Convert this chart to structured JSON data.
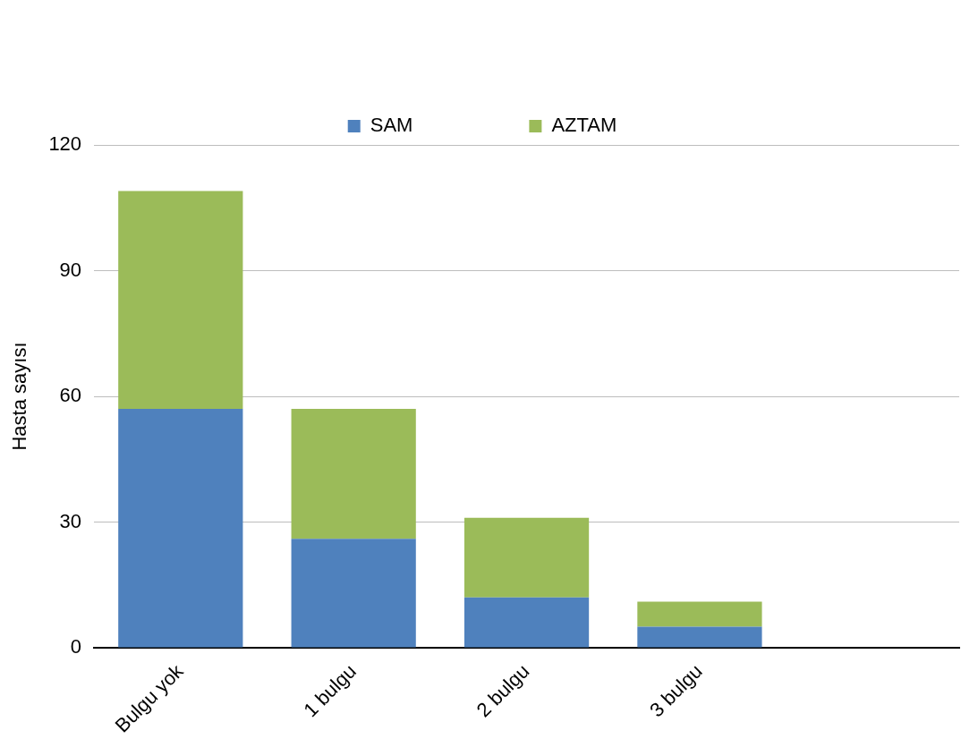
{
  "chart_data": {
    "type": "bar",
    "stacked": true,
    "ylabel": "Hasta sayısı",
    "categories": [
      "Bulgu yok",
      "1 bulgu",
      "2 bulgu",
      "3 bulgu",
      null
    ],
    "series": [
      {
        "name": "SAM",
        "color": "#4f81bd",
        "values": [
          57,
          26,
          12,
          5,
          null
        ]
      },
      {
        "name": "AZTAM",
        "color": "#9bbb59",
        "values": [
          52,
          31,
          19,
          6,
          null
        ]
      }
    ],
    "ylim": [
      0,
      120
    ],
    "yticks": [
      0,
      30,
      60,
      90,
      120
    ],
    "grid": "y",
    "legend": "top"
  }
}
